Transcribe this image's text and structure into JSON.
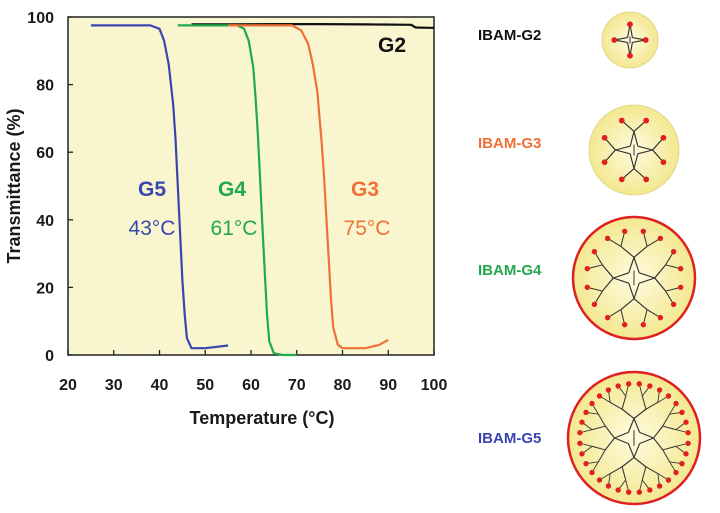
{
  "chart_data": {
    "type": "line",
    "xlabel": "Temperature (°C)",
    "ylabel": "Transmittance (%)",
    "xlim": [
      20,
      100
    ],
    "ylim": [
      0,
      100
    ],
    "x_ticks": [
      20,
      30,
      40,
      50,
      60,
      70,
      80,
      90,
      100
    ],
    "y_ticks": [
      0,
      20,
      40,
      60,
      80,
      100
    ],
    "grid": false,
    "series": [
      {
        "name": "G2",
        "color": "#111111",
        "x": [
          47,
          55,
          65,
          75,
          85,
          95,
          96,
          99,
          100
        ],
        "y": [
          97.8,
          97.8,
          97.9,
          97.9,
          97.8,
          97.7,
          96.9,
          96.8,
          96.8
        ]
      },
      {
        "name": "G5",
        "color": "#3a46b0",
        "x": [
          25,
          38,
          40,
          41,
          42,
          43,
          43.5,
          44,
          44.5,
          45,
          45.5,
          46,
          47,
          50,
          55
        ],
        "y": [
          97.5,
          97.5,
          96.5,
          93,
          86,
          74,
          64,
          50,
          36,
          22,
          12,
          5,
          2,
          2,
          2.8
        ]
      },
      {
        "name": "G4",
        "color": "#22a84e",
        "x": [
          44,
          57,
          58.5,
          59.5,
          60.5,
          61,
          61.5,
          62,
          62.5,
          63,
          63.5,
          64,
          65,
          67,
          70
        ],
        "y": [
          97.5,
          97.5,
          96.5,
          93,
          85,
          76,
          65,
          52,
          38,
          25,
          12,
          4,
          0.5,
          0,
          0
        ]
      },
      {
        "name": "G3",
        "color": "#f07038",
        "x": [
          55,
          69,
          71,
          72.5,
          73.5,
          74.5,
          75,
          75.5,
          76,
          76.5,
          77,
          77.5,
          78,
          79,
          80,
          85,
          88,
          90
        ],
        "y": [
          97.5,
          97.5,
          96,
          92,
          86,
          78,
          70,
          62,
          52,
          40,
          28,
          16,
          8,
          3,
          2,
          2,
          3,
          4.5
        ]
      }
    ],
    "annotations": [
      {
        "text": "G2",
        "color": "#111111"
      },
      {
        "text": "G5",
        "color": "#3a46b0",
        "temp": "43°C"
      },
      {
        "text": "G4",
        "color": "#22a84e",
        "temp": "61°C"
      },
      {
        "text": "G3",
        "color": "#f07038",
        "temp": "75°C"
      }
    ]
  },
  "structures": [
    {
      "label": "IBAM-G2",
      "color": "#111111"
    },
    {
      "label": "IBAM-G3",
      "color": "#f07038"
    },
    {
      "label": "IBAM-G4",
      "color": "#22a84e"
    },
    {
      "label": "IBAM-G5",
      "color": "#3a46b0"
    }
  ],
  "colors": {
    "plot_background": "#f9f6cf",
    "dendrimer_fill": "#f9f3b6",
    "dendrimer_edge": "#e02020",
    "branch": "#333333"
  }
}
